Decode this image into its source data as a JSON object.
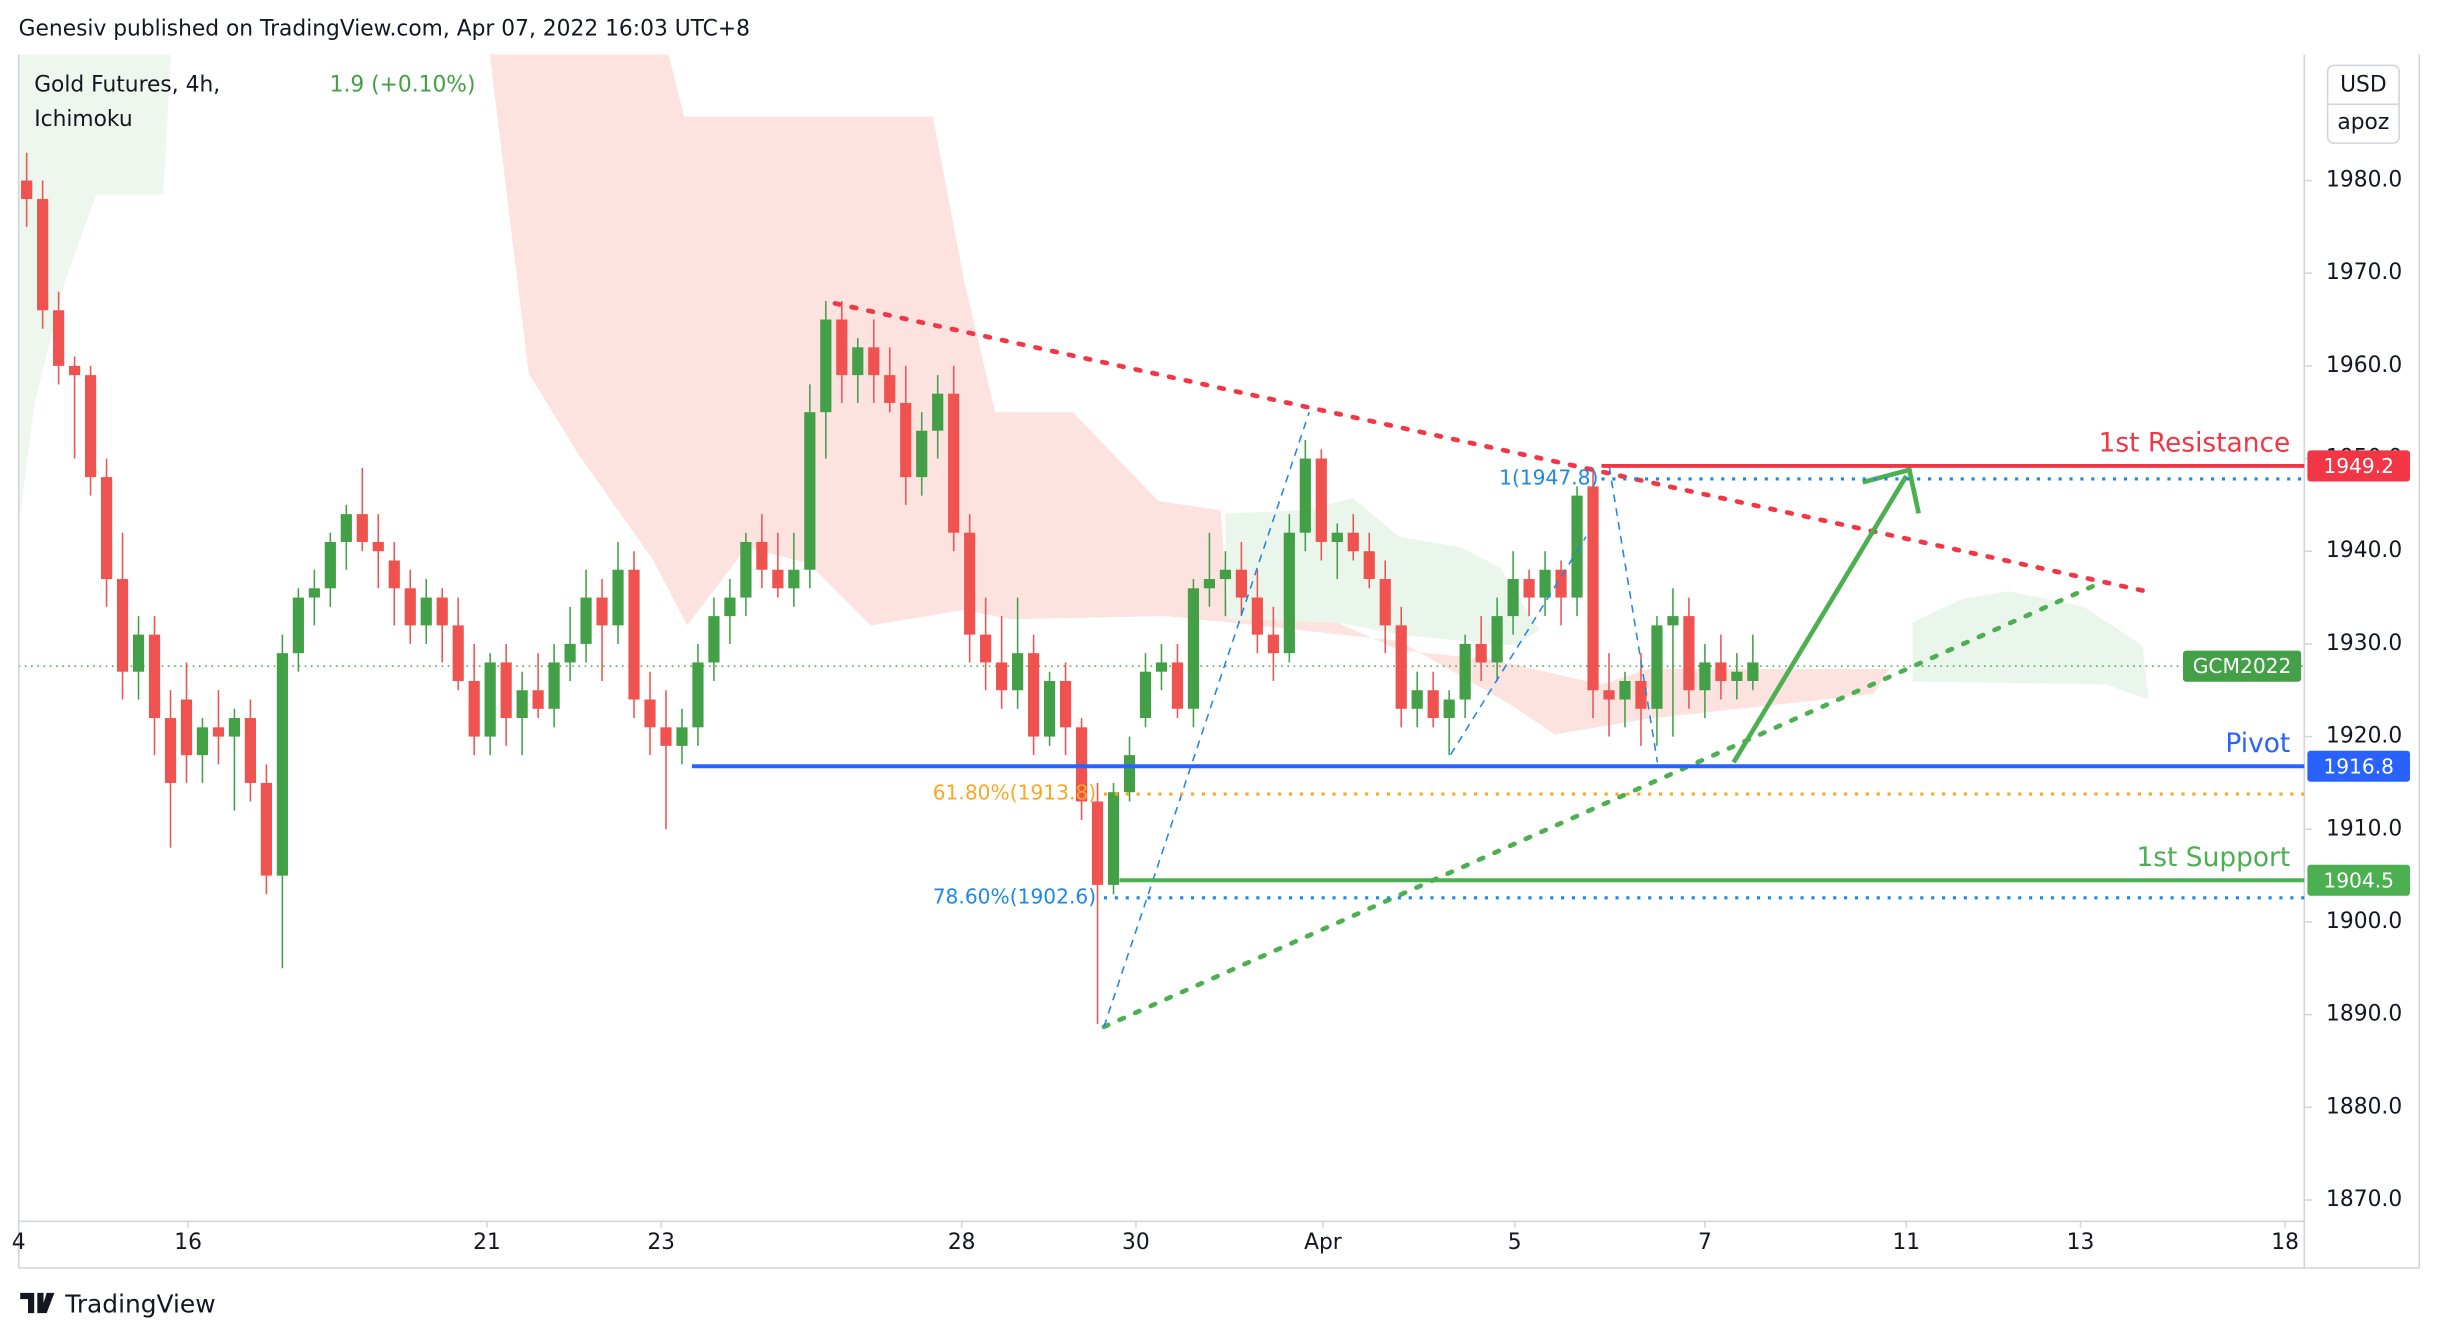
{
  "chart_data": {
    "type": "candlestick",
    "publisher": "Genesiv published on TradingView.com, Apr 07, 2022 16:03 UTC+8",
    "title": "Gold Futures, 4h,",
    "change": "1.9 (+0.10%)",
    "indicator": "Ichimoku",
    "currency": "USD",
    "scale_mode": "apoz",
    "brand": "TradingView",
    "up_color": "#43a047",
    "down_color": "#ef5350",
    "open": [
      1980,
      1978,
      1966,
      1960,
      1959,
      1948,
      1937,
      1927,
      1931,
      1922,
      1924,
      1918,
      1921,
      1920,
      1922,
      1915,
      1905,
      1929,
      1935,
      1936,
      1941,
      1944,
      1941,
      1939,
      1936,
      1932,
      1935,
      1932,
      1926,
      1920,
      1928,
      1922,
      1925,
      1923,
      1928,
      1930,
      1935,
      1932,
      1938,
      1924,
      1921,
      1919,
      1921,
      1928,
      1933,
      1935,
      1941,
      1938,
      1936,
      1938,
      1955,
      1965,
      1959,
      1962,
      1959,
      1956,
      1948,
      1953,
      1957,
      1942,
      1931,
      1928,
      1925,
      1929,
      1920,
      1926,
      1921,
      1913,
      1904,
      1914,
      1922,
      1927,
      1928,
      1923,
      1936,
      1937,
      1938,
      1935,
      1931,
      1929,
      1942,
      1950,
      1941,
      1942,
      1940,
      1937,
      1932,
      1923,
      1925,
      1922,
      1924,
      1930,
      1928,
      1933,
      1937,
      1935,
      1938,
      1935,
      1947,
      1925,
      1924,
      1926,
      1923,
      1932,
      1933,
      1925,
      1928,
      1926,
      1926
    ],
    "high": [
      1983,
      1980,
      1968,
      1961,
      1960,
      1950,
      1942,
      1933,
      1933,
      1925,
      1928,
      1922,
      1925,
      1923,
      1924,
      1917,
      1931,
      1936,
      1938,
      1942,
      1945,
      1949,
      1944,
      1941,
      1938,
      1937,
      1936,
      1935,
      1930,
      1929,
      1930,
      1927,
      1929,
      1930,
      1934,
      1938,
      1937,
      1941,
      1940,
      1927,
      1925,
      1923,
      1930,
      1935,
      1937,
      1942,
      1944,
      1942,
      1942,
      1958,
      1967,
      1967,
      1963,
      1965,
      1962,
      1960,
      1955,
      1959,
      1960,
      1944,
      1935,
      1933,
      1935,
      1931,
      1927,
      1928,
      1922,
      1915,
      1915,
      1920,
      1929,
      1930,
      1930,
      1937,
      1942,
      1940,
      1941,
      1938,
      1934,
      1944,
      1952,
      1951,
      1943,
      1944,
      1942,
      1939,
      1934,
      1927,
      1927,
      1925,
      1931,
      1933,
      1935,
      1940,
      1938,
      1940,
      1939,
      1947,
      1949,
      1929,
      1927,
      1929,
      1933,
      1936,
      1935,
      1930,
      1931,
      1929,
      1931
    ],
    "low": [
      1975,
      1964,
      1958,
      1950,
      1946,
      1934,
      1924,
      1924,
      1918,
      1908,
      1915,
      1915,
      1917,
      1912,
      1913,
      1903,
      1895,
      1927,
      1932,
      1934,
      1938,
      1940,
      1936,
      1932,
      1930,
      1930,
      1928,
      1925,
      1918,
      1918,
      1919,
      1918,
      1922,
      1921,
      1926,
      1928,
      1926,
      1930,
      1922,
      1918,
      1910,
      1917,
      1919,
      1926,
      1930,
      1933,
      1936,
      1935,
      1934,
      1936,
      1950,
      1956,
      1956,
      1956,
      1955,
      1945,
      1946,
      1950,
      1940,
      1928,
      1925,
      1923,
      1923,
      1918,
      1919,
      1918,
      1911,
      1889,
      1903,
      1913,
      1921,
      1925,
      1922,
      1921,
      1934,
      1933,
      1933,
      1929,
      1926,
      1928,
      1940,
      1939,
      1937,
      1939,
      1936,
      1929,
      1921,
      1921,
      1921,
      1918,
      1922,
      1926,
      1926,
      1931,
      1933,
      1933,
      1932,
      1933,
      1922,
      1920,
      1921,
      1919,
      1919,
      1920,
      1923,
      1922,
      1924,
      1924,
      1925
    ],
    "close": [
      1978,
      1966,
      1960,
      1959,
      1948,
      1937,
      1927,
      1931,
      1922,
      1915,
      1918,
      1921,
      1920,
      1922,
      1915,
      1905,
      1929,
      1935,
      1936,
      1941,
      1944,
      1941,
      1940,
      1936,
      1932,
      1935,
      1932,
      1926,
      1920,
      1928,
      1922,
      1925,
      1923,
      1928,
      1930,
      1935,
      1932,
      1938,
      1924,
      1921,
      1919,
      1921,
      1928,
      1933,
      1935,
      1941,
      1938,
      1936,
      1938,
      1955,
      1965,
      1959,
      1962,
      1959,
      1956,
      1948,
      1953,
      1957,
      1942,
      1931,
      1928,
      1925,
      1929,
      1920,
      1926,
      1921,
      1913,
      1904,
      1914,
      1918,
      1927,
      1928,
      1923,
      1936,
      1937,
      1938,
      1935,
      1931,
      1929,
      1942,
      1950,
      1941,
      1942,
      1940,
      1937,
      1932,
      1923,
      1925,
      1922,
      1924,
      1930,
      1928,
      1933,
      1937,
      1935,
      1938,
      1935,
      1946,
      1925,
      1924,
      1926,
      1923,
      1932,
      1933,
      1925,
      1928,
      1926,
      1927,
      1928
    ],
    "xlim": [
      -0.5,
      142.5
    ],
    "xticks": [
      {
        "value": -0.5,
        "label": "4"
      },
      {
        "value": 10.1,
        "label": "16"
      },
      {
        "value": 28.8,
        "label": "21"
      },
      {
        "value": 39.7,
        "label": "23"
      },
      {
        "value": 58.5,
        "label": "28"
      },
      {
        "value": 69.4,
        "label": "30"
      },
      {
        "value": 81.1,
        "label": "Apr"
      },
      {
        "value": 93.1,
        "label": "5"
      },
      {
        "value": 105,
        "label": "7"
      },
      {
        "value": 117.6,
        "label": "11"
      },
      {
        "value": 128.5,
        "label": "13"
      },
      {
        "value": 141.3,
        "label": "18"
      }
    ],
    "ylim": [
      1867.7,
      1993.6
    ],
    "yticks": [
      {
        "value": 1870,
        "label": "1870.0"
      },
      {
        "value": 1880,
        "label": "1880.0"
      },
      {
        "value": 1890,
        "label": "1890.0"
      },
      {
        "value": 1900,
        "label": "1900.0"
      },
      {
        "value": 1910,
        "label": "1910.0"
      },
      {
        "value": 1920,
        "label": "1920.0"
      },
      {
        "value": 1930,
        "label": "1930.0"
      },
      {
        "value": 1940,
        "label": "1940.0"
      },
      {
        "value": 1950,
        "label": "1950.0"
      },
      {
        "value": 1960,
        "label": "1960.0"
      },
      {
        "value": 1970,
        "label": "1970.0"
      },
      {
        "value": 1980,
        "label": "1980.0"
      }
    ],
    "levels": [
      {
        "name": "1st Resistance",
        "value": 1949.2,
        "color": "#f23645"
      },
      {
        "name": "Pivot",
        "value": 1916.8,
        "color": "#2962ff"
      },
      {
        "name": "1st Support",
        "value": 1904.5,
        "color": "#4caf50"
      }
    ],
    "fib_levels": [
      {
        "value": 1913.8,
        "label": "61.80%(1913.8)",
        "color": "#f9a825"
      },
      {
        "value": 1902.6,
        "label": "78.60%(1902.6)",
        "color": "#1e88e5"
      },
      {
        "value": 1947.8,
        "label": "1(1947.8)",
        "color": "#1e88e5"
      }
    ],
    "last_price": {
      "value": 1927.6,
      "label": "GCM2022",
      "color": "#43a047"
    }
  }
}
